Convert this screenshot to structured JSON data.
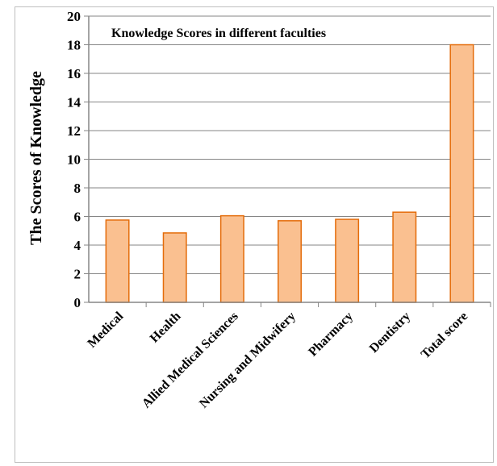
{
  "chart_data": {
    "type": "bar",
    "title": "Knowledge Scores in different faculties",
    "ylabel": "The Scores of Knowledge",
    "xlabel": "",
    "categories": [
      "Medical",
      "Health",
      "Allied Medical Sciences",
      "Nursing and Midwifery",
      "Pharmacy",
      "Dentistry",
      "Total score"
    ],
    "values": [
      5.75,
      4.85,
      6.05,
      5.7,
      5.8,
      6.3,
      18.0
    ],
    "ylim": [
      0,
      20
    ],
    "yticks": [
      "0",
      "2",
      "4",
      "6",
      "8",
      "10",
      "12",
      "14",
      "16",
      "18",
      "20"
    ],
    "grid": true,
    "legend": "none",
    "colors": {
      "bar_fill": "#fac090",
      "bar_stroke": "#e46c0a",
      "grid": "#868686",
      "axis": "#868686"
    }
  }
}
